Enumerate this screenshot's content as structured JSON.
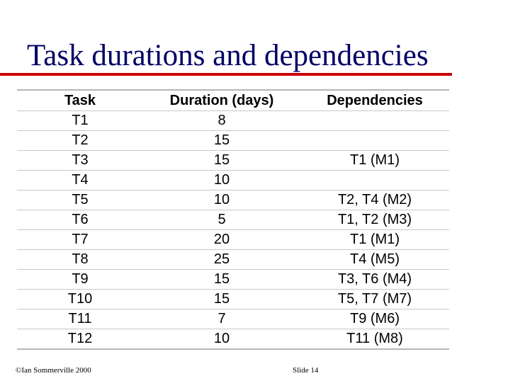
{
  "slide": {
    "title": "Task durations and dependencies",
    "accent_color": "#cc0000",
    "title_color": "#000066"
  },
  "table": {
    "headers": [
      "Task",
      "Duration (days)",
      "Dependencies"
    ],
    "rows": [
      [
        "T1",
        "8",
        ""
      ],
      [
        "T2",
        "15",
        ""
      ],
      [
        "T3",
        "15",
        "T1 (M1)"
      ],
      [
        "T4",
        "10",
        ""
      ],
      [
        "T5",
        "10",
        "T2, T4 (M2)"
      ],
      [
        "T6",
        "5",
        "T1, T2 (M3)"
      ],
      [
        "T7",
        "20",
        "T1 (M1)"
      ],
      [
        "T8",
        "25",
        "T4 (M5)"
      ],
      [
        "T9",
        "15",
        "T3, T6 (M4)"
      ],
      [
        "T10",
        "15",
        "T5, T7 (M7)"
      ],
      [
        "T11",
        "7",
        "T9 (M6)"
      ],
      [
        "T12",
        "10",
        "T11 (M8)"
      ]
    ]
  },
  "footer": {
    "copyright": "©Ian Sommerville 2000",
    "slide_number": "Slide  14"
  }
}
